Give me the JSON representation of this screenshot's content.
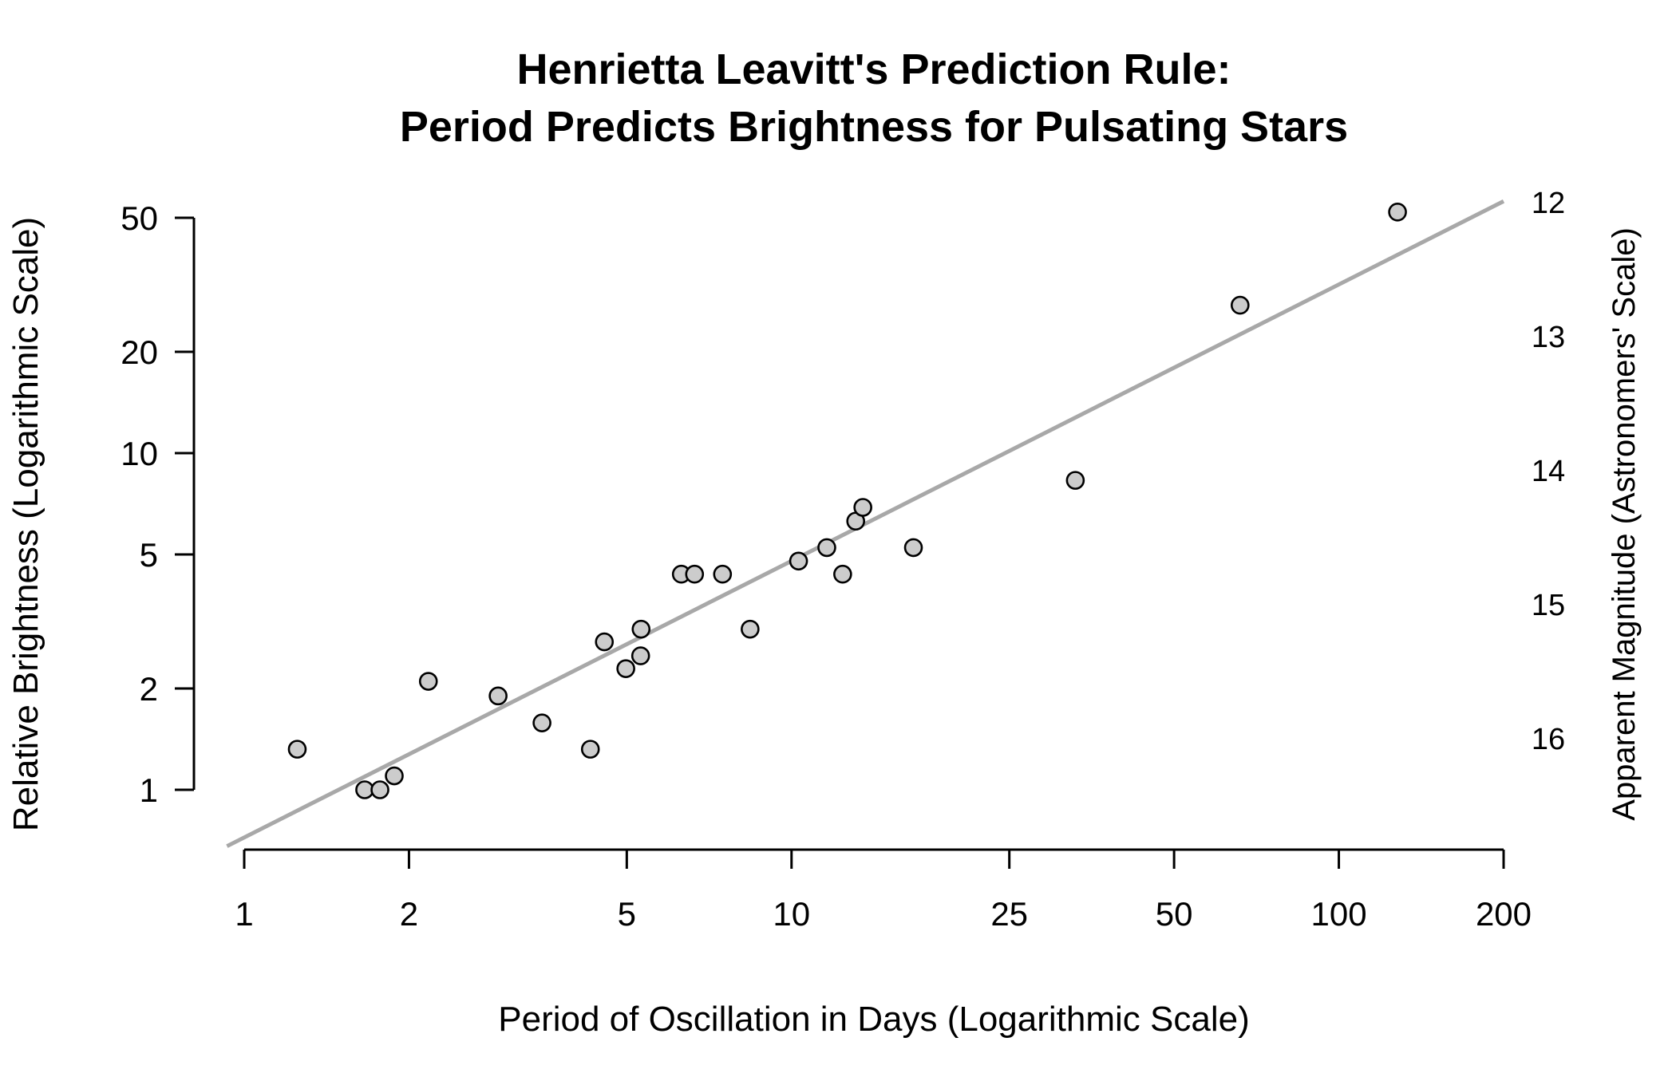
{
  "chart_data": {
    "type": "scatter",
    "title": "Henrietta Leavitt's Prediction Rule:",
    "subtitle": "Period Predicts Brightness for Pulsating Stars",
    "xlabel": "Period of Oscillation in Days (Logarithmic Scale)",
    "ylabel": "Relative Brightness (Logarithmic Scale)",
    "ylabel_right": "Apparent Magnitude (Astronomers' Scale)",
    "x_scale": "log",
    "y_scale": "log",
    "xlim": [
      1,
      200
    ],
    "ylim": [
      0.68,
      56
    ],
    "x_ticks": [
      1,
      2,
      5,
      10,
      25,
      50,
      100,
      200
    ],
    "x_tick_labels": [
      "1",
      "2",
      "5",
      "10",
      "25",
      "50",
      "100",
      "200"
    ],
    "y_ticks": [
      1,
      2,
      5,
      10,
      20,
      50
    ],
    "y_tick_labels": [
      "1",
      "2",
      "5",
      "10",
      "20",
      "50"
    ],
    "y_right_ticks": [
      12,
      13,
      14,
      15,
      16
    ],
    "y_right_tick_labels": [
      "12",
      "13",
      "14",
      "15",
      "16"
    ],
    "grid": false,
    "legend": "none",
    "point_color": "#cccccc",
    "line_color": "#a8a8a8",
    "points": [
      {
        "x": 1.25,
        "y": 1.32
      },
      {
        "x": 1.66,
        "y": 1.0
      },
      {
        "x": 1.77,
        "y": 1.0
      },
      {
        "x": 1.88,
        "y": 1.1
      },
      {
        "x": 2.17,
        "y": 2.1
      },
      {
        "x": 2.91,
        "y": 1.9
      },
      {
        "x": 3.5,
        "y": 1.58
      },
      {
        "x": 4.29,
        "y": 1.32
      },
      {
        "x": 4.55,
        "y": 2.75
      },
      {
        "x": 4.98,
        "y": 2.29
      },
      {
        "x": 5.3,
        "y": 2.5
      },
      {
        "x": 5.31,
        "y": 3.0
      },
      {
        "x": 6.29,
        "y": 4.37
      },
      {
        "x": 6.65,
        "y": 4.37
      },
      {
        "x": 7.48,
        "y": 4.37
      },
      {
        "x": 8.4,
        "y": 3.0
      },
      {
        "x": 10.3,
        "y": 4.78
      },
      {
        "x": 11.6,
        "y": 5.24
      },
      {
        "x": 12.4,
        "y": 4.37
      },
      {
        "x": 13.1,
        "y": 6.28
      },
      {
        "x": 13.5,
        "y": 6.9
      },
      {
        "x": 16.7,
        "y": 5.24
      },
      {
        "x": 33.0,
        "y": 8.3
      },
      {
        "x": 66.0,
        "y": 27.5
      },
      {
        "x": 128.0,
        "y": 52.0
      }
    ],
    "fit_line": [
      {
        "x": 0.93,
        "y": 0.68
      },
      {
        "x": 200.0,
        "y": 56.0
      }
    ]
  }
}
